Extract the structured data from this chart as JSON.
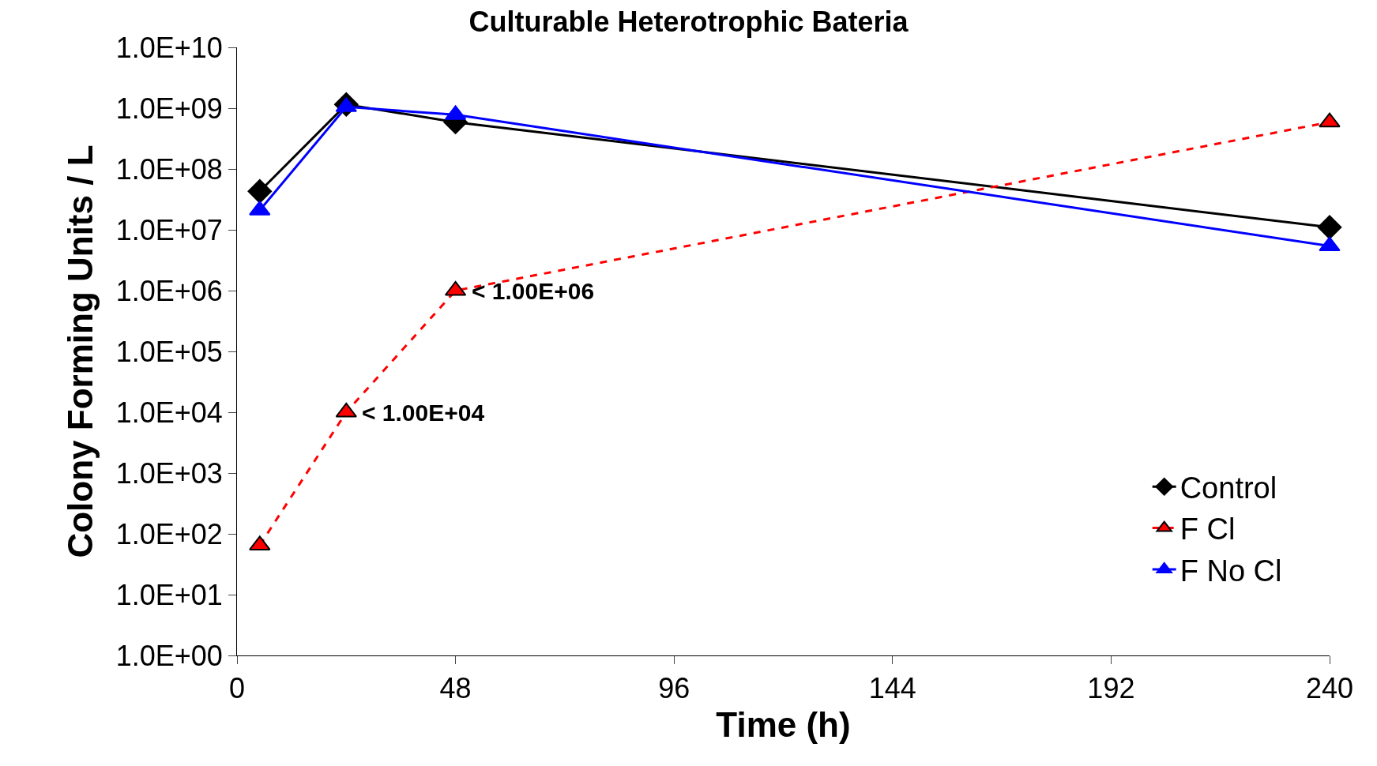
{
  "chart_data": {
    "type": "line",
    "title": "Culturable Heterotrophic Bateria",
    "xlabel": "Time (h)",
    "ylabel": "Colony Forming Units / L",
    "x": [
      5,
      24,
      48,
      240
    ],
    "series": [
      {
        "name": "Control",
        "color": "#000000",
        "marker": "diamond",
        "line_style": "solid",
        "values": [
          43000000,
          1150000000,
          590000000,
          11000000
        ]
      },
      {
        "name": "F Cl",
        "color": "#ff0000",
        "marker": "triangle",
        "line_style": "dashed",
        "values": [
          65,
          10000,
          1000000,
          590000000
        ]
      },
      {
        "name": "F No Cl",
        "color": "#0000ff",
        "marker": "triangle",
        "line_style": "solid",
        "values": [
          21000000,
          1050000000,
          780000000,
          5400000
        ]
      }
    ],
    "annotations": [
      {
        "text": "< 1.00E+04",
        "x": 24,
        "y": 10000
      },
      {
        "text": "< 1.00E+06",
        "x": 48,
        "y": 1000000
      }
    ],
    "log": true,
    "legend": "bottom right",
    "xlim": [
      0,
      240
    ],
    "xticks": [
      0,
      48,
      96,
      144,
      192,
      240
    ],
    "ylim": [
      1,
      10000000000
    ],
    "yticks": [
      {
        "value": 1,
        "label": "1.0E+00"
      },
      {
        "value": 10,
        "label": "1.0E+01"
      },
      {
        "value": 100,
        "label": "1.0E+02"
      },
      {
        "value": 1000,
        "label": "1.0E+03"
      },
      {
        "value": 10000,
        "label": "1.0E+04"
      },
      {
        "value": 100000,
        "label": "1.0E+05"
      },
      {
        "value": 1000000,
        "label": "1.0E+06"
      },
      {
        "value": 10000000,
        "label": "1.0E+07"
      },
      {
        "value": 100000000,
        "label": "1.0E+08"
      },
      {
        "value": 1000000000,
        "label": "1.0E+09"
      },
      {
        "value": 10000000000,
        "label": "1.0E+10"
      }
    ]
  }
}
